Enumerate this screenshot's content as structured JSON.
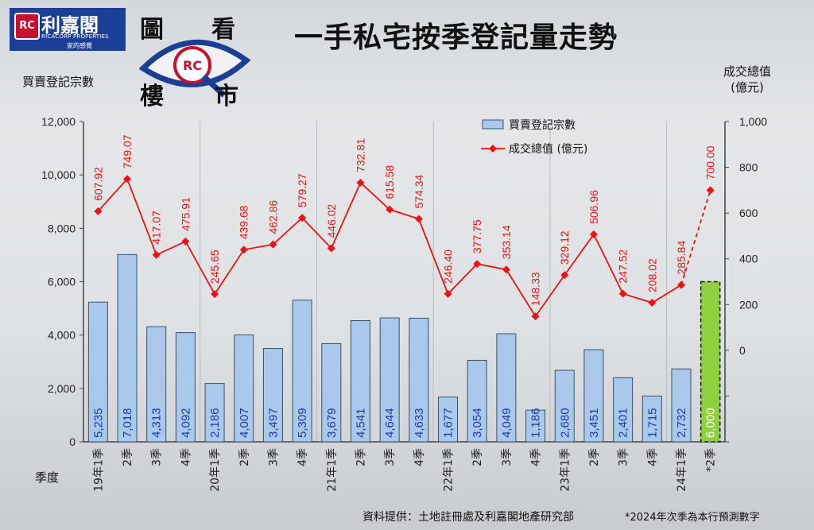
{
  "header": {
    "title": "一手私宅按季登記量走勢",
    "brand_name": "利嘉閣",
    "brand_en": "RICACORP PROPERTIES",
    "brand_slogan": "家的感覺",
    "brand_emblem": "RC",
    "column_chars": [
      "圖",
      "看",
      "樓",
      "市"
    ]
  },
  "footer": {
    "source": "資料提供：土地註冊處及利嘉閣地產研究部",
    "note": "*2024年次季為本行預測數字"
  },
  "colors": {
    "bar": "#a9c8eb",
    "bar_stroke": "#3a5068",
    "predicted_bar": "#8fd13c",
    "line": "#ee1111",
    "bar_label": "#1a3aa0"
  },
  "chart_data": {
    "type": "bar",
    "title": "一手私宅按季登記量走勢",
    "xlabel": "季度",
    "ylabel": "買賣登記宗數",
    "y2label": "成交總值\n(億元)",
    "ylim": [
      0,
      12000
    ],
    "y2lim": [
      -400,
      1000
    ],
    "y_ticks": [
      "0",
      "2,000",
      "4,000",
      "6,000",
      "8,000",
      "10,000",
      "12,000"
    ],
    "y2_ticks": [
      "0",
      "200",
      "400",
      "600",
      "800",
      "1,000"
    ],
    "grid": true,
    "legend_position": "top-right",
    "categories": [
      "19年1季",
      "2季",
      "3季",
      "4季",
      "20年1季",
      "2季",
      "3季",
      "4季",
      "21年1季",
      "2季",
      "3季",
      "4季",
      "22年1季",
      "2季",
      "3季",
      "4季",
      "23年1季",
      "2季",
      "3季",
      "4季",
      "24年1季",
      "*2季"
    ],
    "series": [
      {
        "name": "買賣登記宗數",
        "type": "bar",
        "values": [
          5235,
          7018,
          4313,
          4092,
          2186,
          4007,
          3497,
          5309,
          3679,
          4541,
          4644,
          4633,
          1677,
          3054,
          4049,
          1186,
          2680,
          3451,
          2401,
          1715,
          2732,
          6000
        ],
        "labels": [
          "5,235",
          "7,018",
          "4,313",
          "4,092",
          "2,186",
          "4,007",
          "3,497",
          "5,309",
          "3,679",
          "4,541",
          "4,644",
          "4,633",
          "1,677",
          "3,054",
          "4,049",
          "1,186",
          "2,680",
          "3,451",
          "2,401",
          "1,715",
          "2,732",
          "6,000"
        ]
      },
      {
        "name": "成交總值 (億元)",
        "type": "line",
        "axis": "right",
        "values": [
          607.92,
          749.07,
          417.07,
          475.91,
          245.65,
          439.68,
          462.86,
          579.27,
          446.02,
          732.81,
          615.58,
          574.34,
          246.4,
          377.75,
          353.14,
          148.33,
          329.12,
          506.96,
          247.52,
          208.02,
          285.84,
          700.0
        ],
        "labels": [
          "607.92",
          "749.07",
          "417.07",
          "475.91",
          "245.65",
          "439.68",
          "462.86",
          "579.27",
          "446.02",
          "732.81",
          "615.58",
          "574.34",
          "246.40",
          "377.75",
          "353.14",
          "148.33",
          "329.12",
          "506.96",
          "247.52",
          "208.02",
          "285.84",
          "700.00"
        ]
      }
    ],
    "predicted_index": 21
  }
}
